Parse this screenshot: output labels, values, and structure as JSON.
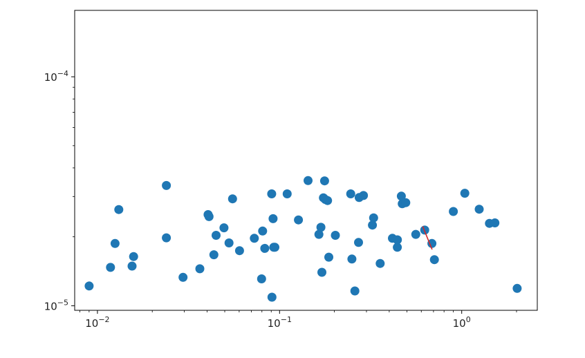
{
  "chart_data": {
    "type": "scatter",
    "title": "",
    "xlabel": "",
    "ylabel": "",
    "xscale": "log",
    "yscale": "log",
    "xlim": [
      0.0075,
      2.6
    ],
    "ylim": [
      9.55e-06,
      0.000195
    ],
    "grid": false,
    "marker_color": "#1f77b4",
    "line_color": "#d62728",
    "x_ticks": [
      {
        "value": 0.01,
        "base": "10",
        "exp": "−2"
      },
      {
        "value": 0.1,
        "base": "10",
        "exp": "−1"
      },
      {
        "value": 1,
        "base": "10",
        "exp": "0"
      }
    ],
    "y_ticks": [
      {
        "value": 1e-05,
        "base": "10",
        "exp": "−5"
      },
      {
        "value": 0.0001,
        "base": "10",
        "exp": "−4"
      }
    ],
    "series": [
      {
        "kind": "points",
        "x": [
          0.009,
          0.0118,
          0.0125,
          0.0131,
          0.0155,
          0.0158,
          0.0239,
          0.0239,
          0.0295,
          0.0365,
          0.0405,
          0.041,
          0.0436,
          0.0448,
          0.0495,
          0.0528,
          0.0552,
          0.0603,
          0.0727,
          0.0797,
          0.0807,
          0.0829,
          0.0905,
          0.0908,
          0.0921,
          0.0929,
          0.0942,
          0.1101,
          0.1269,
          0.1434,
          0.1645,
          0.1687,
          0.1707,
          0.1741,
          0.1766,
          0.1786,
          0.1834,
          0.1863,
          0.2024,
          0.2459,
          0.2496,
          0.2591,
          0.2713,
          0.2736,
          0.2887,
          0.3234,
          0.3283,
          0.3567,
          0.4163,
          0.4433,
          0.4437,
          0.4662,
          0.4716,
          0.4932,
          0.5598,
          0.6262,
          0.6863,
          0.7082,
          0.9,
          1.04,
          1.248,
          1.42,
          1.522,
          2.016
        ],
        "y": [
          1.22e-05,
          1.47e-05,
          1.87e-05,
          2.63e-05,
          1.49e-05,
          1.64e-05,
          3.35e-05,
          1.98e-05,
          1.33e-05,
          1.45e-05,
          2.5e-05,
          2.45e-05,
          1.67e-05,
          2.03e-05,
          2.19e-05,
          1.88e-05,
          2.93e-05,
          1.74e-05,
          1.97e-05,
          1.31e-05,
          2.12e-05,
          1.78e-05,
          3.08e-05,
          1.09e-05,
          2.4e-05,
          1.8e-05,
          1.8e-05,
          3.08e-05,
          2.37e-05,
          3.52e-05,
          2.05e-05,
          2.2e-05,
          1.4e-05,
          2.96e-05,
          3.51e-05,
          2.91e-05,
          2.88e-05,
          1.63e-05,
          2.03e-05,
          3.08e-05,
          1.6e-05,
          1.16e-05,
          1.89e-05,
          2.97e-05,
          3.03e-05,
          2.25e-05,
          2.42e-05,
          1.53e-05,
          1.97e-05,
          1.8e-05,
          1.94e-05,
          3.01e-05,
          2.79e-05,
          2.82e-05,
          2.05e-05,
          2.14e-05,
          1.87e-05,
          1.59e-05,
          2.58e-05,
          3.1e-05,
          2.64e-05,
          2.29e-05,
          2.3e-05,
          1.19e-05
        ]
      },
      {
        "kind": "line",
        "x": [
          0.611,
          0.688
        ],
        "y": [
          2.22e-05,
          1.76e-05
        ]
      }
    ]
  }
}
